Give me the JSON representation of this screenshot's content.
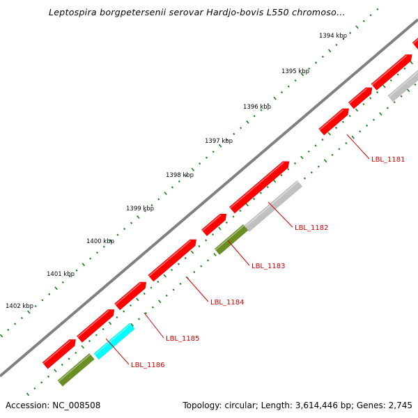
{
  "map": {
    "title": "Leptospira borgpetersenii serovar Hardjo-bovis L550 chromoso...",
    "accession_text": "Accession: NC_008508",
    "topology_text": "Topology: circular; Length: 3,614,446 bp; Genes: 2,745",
    "colors": {
      "backbone": "#808080",
      "tick": "#1a7a1a",
      "forward_gene": "#ff0000",
      "reverse_grey": "#c0c0c0",
      "reverse_olive": "#6b8e23",
      "reverse_cyan": "#00ffff",
      "reverse_blue": "#4682b4",
      "gene_label": "#cc0000"
    },
    "ruler": {
      "unit": "kbp",
      "labels": [
        "1394 kbp",
        "1395 kbp",
        "1396 kbp",
        "1397 kbp",
        "1398 kbp",
        "1399 kbp",
        "1400 kbp",
        "1401 kbp",
        "1402 kbp"
      ]
    },
    "gene_labels": [
      "LBL_1181",
      "LBL_1182",
      "LBL_1183",
      "LBL_1184",
      "LBL_1185",
      "LBL_1186"
    ]
  }
}
